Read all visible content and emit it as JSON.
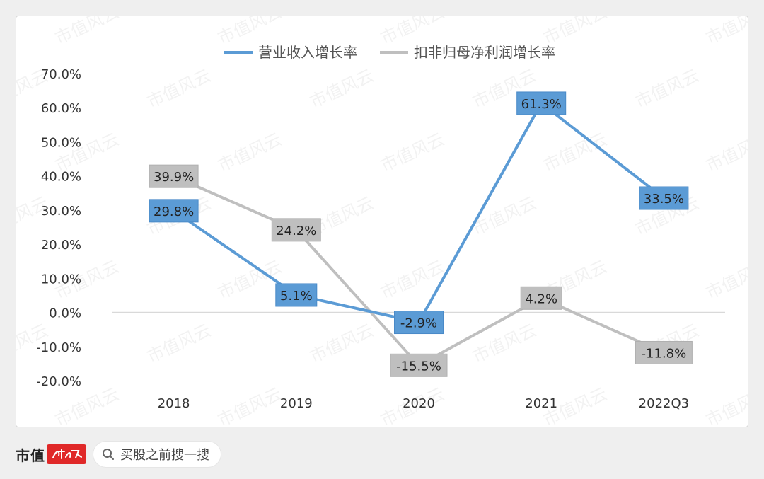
{
  "chart_data": {
    "type": "line",
    "categories": [
      "2018",
      "2019",
      "2020",
      "2021",
      "2022Q3"
    ],
    "series": [
      {
        "name": "营业收入增长率",
        "color": "#5b9bd5",
        "values": [
          29.8,
          5.1,
          -2.9,
          61.3,
          33.5
        ],
        "labels": [
          "29.8%",
          "5.1%",
          "-2.9%",
          "61.3%",
          "33.5%"
        ]
      },
      {
        "name": "扣非归母净利润增长率",
        "color": "#bfbfbf",
        "values": [
          39.9,
          24.2,
          -15.5,
          4.2,
          -11.8
        ],
        "labels": [
          "39.9%",
          "24.2%",
          "-15.5%",
          "4.2%",
          "-11.8%"
        ]
      }
    ],
    "ylim": [
      -20,
      70
    ],
    "yticks": [
      70,
      60,
      50,
      40,
      30,
      20,
      10,
      0,
      -10,
      -20
    ],
    "ytick_labels": [
      "70.0%",
      "60.0%",
      "50.0%",
      "40.0%",
      "30.0%",
      "20.0%",
      "10.0%",
      "0.0%",
      "-10.0%",
      "-20.0%"
    ],
    "legend_position": "top-center",
    "grid": false
  },
  "footer": {
    "brand": "市值",
    "search_placeholder": "买股之前搜一搜",
    "logo_color": "#e02828"
  },
  "watermark": "市值风云"
}
